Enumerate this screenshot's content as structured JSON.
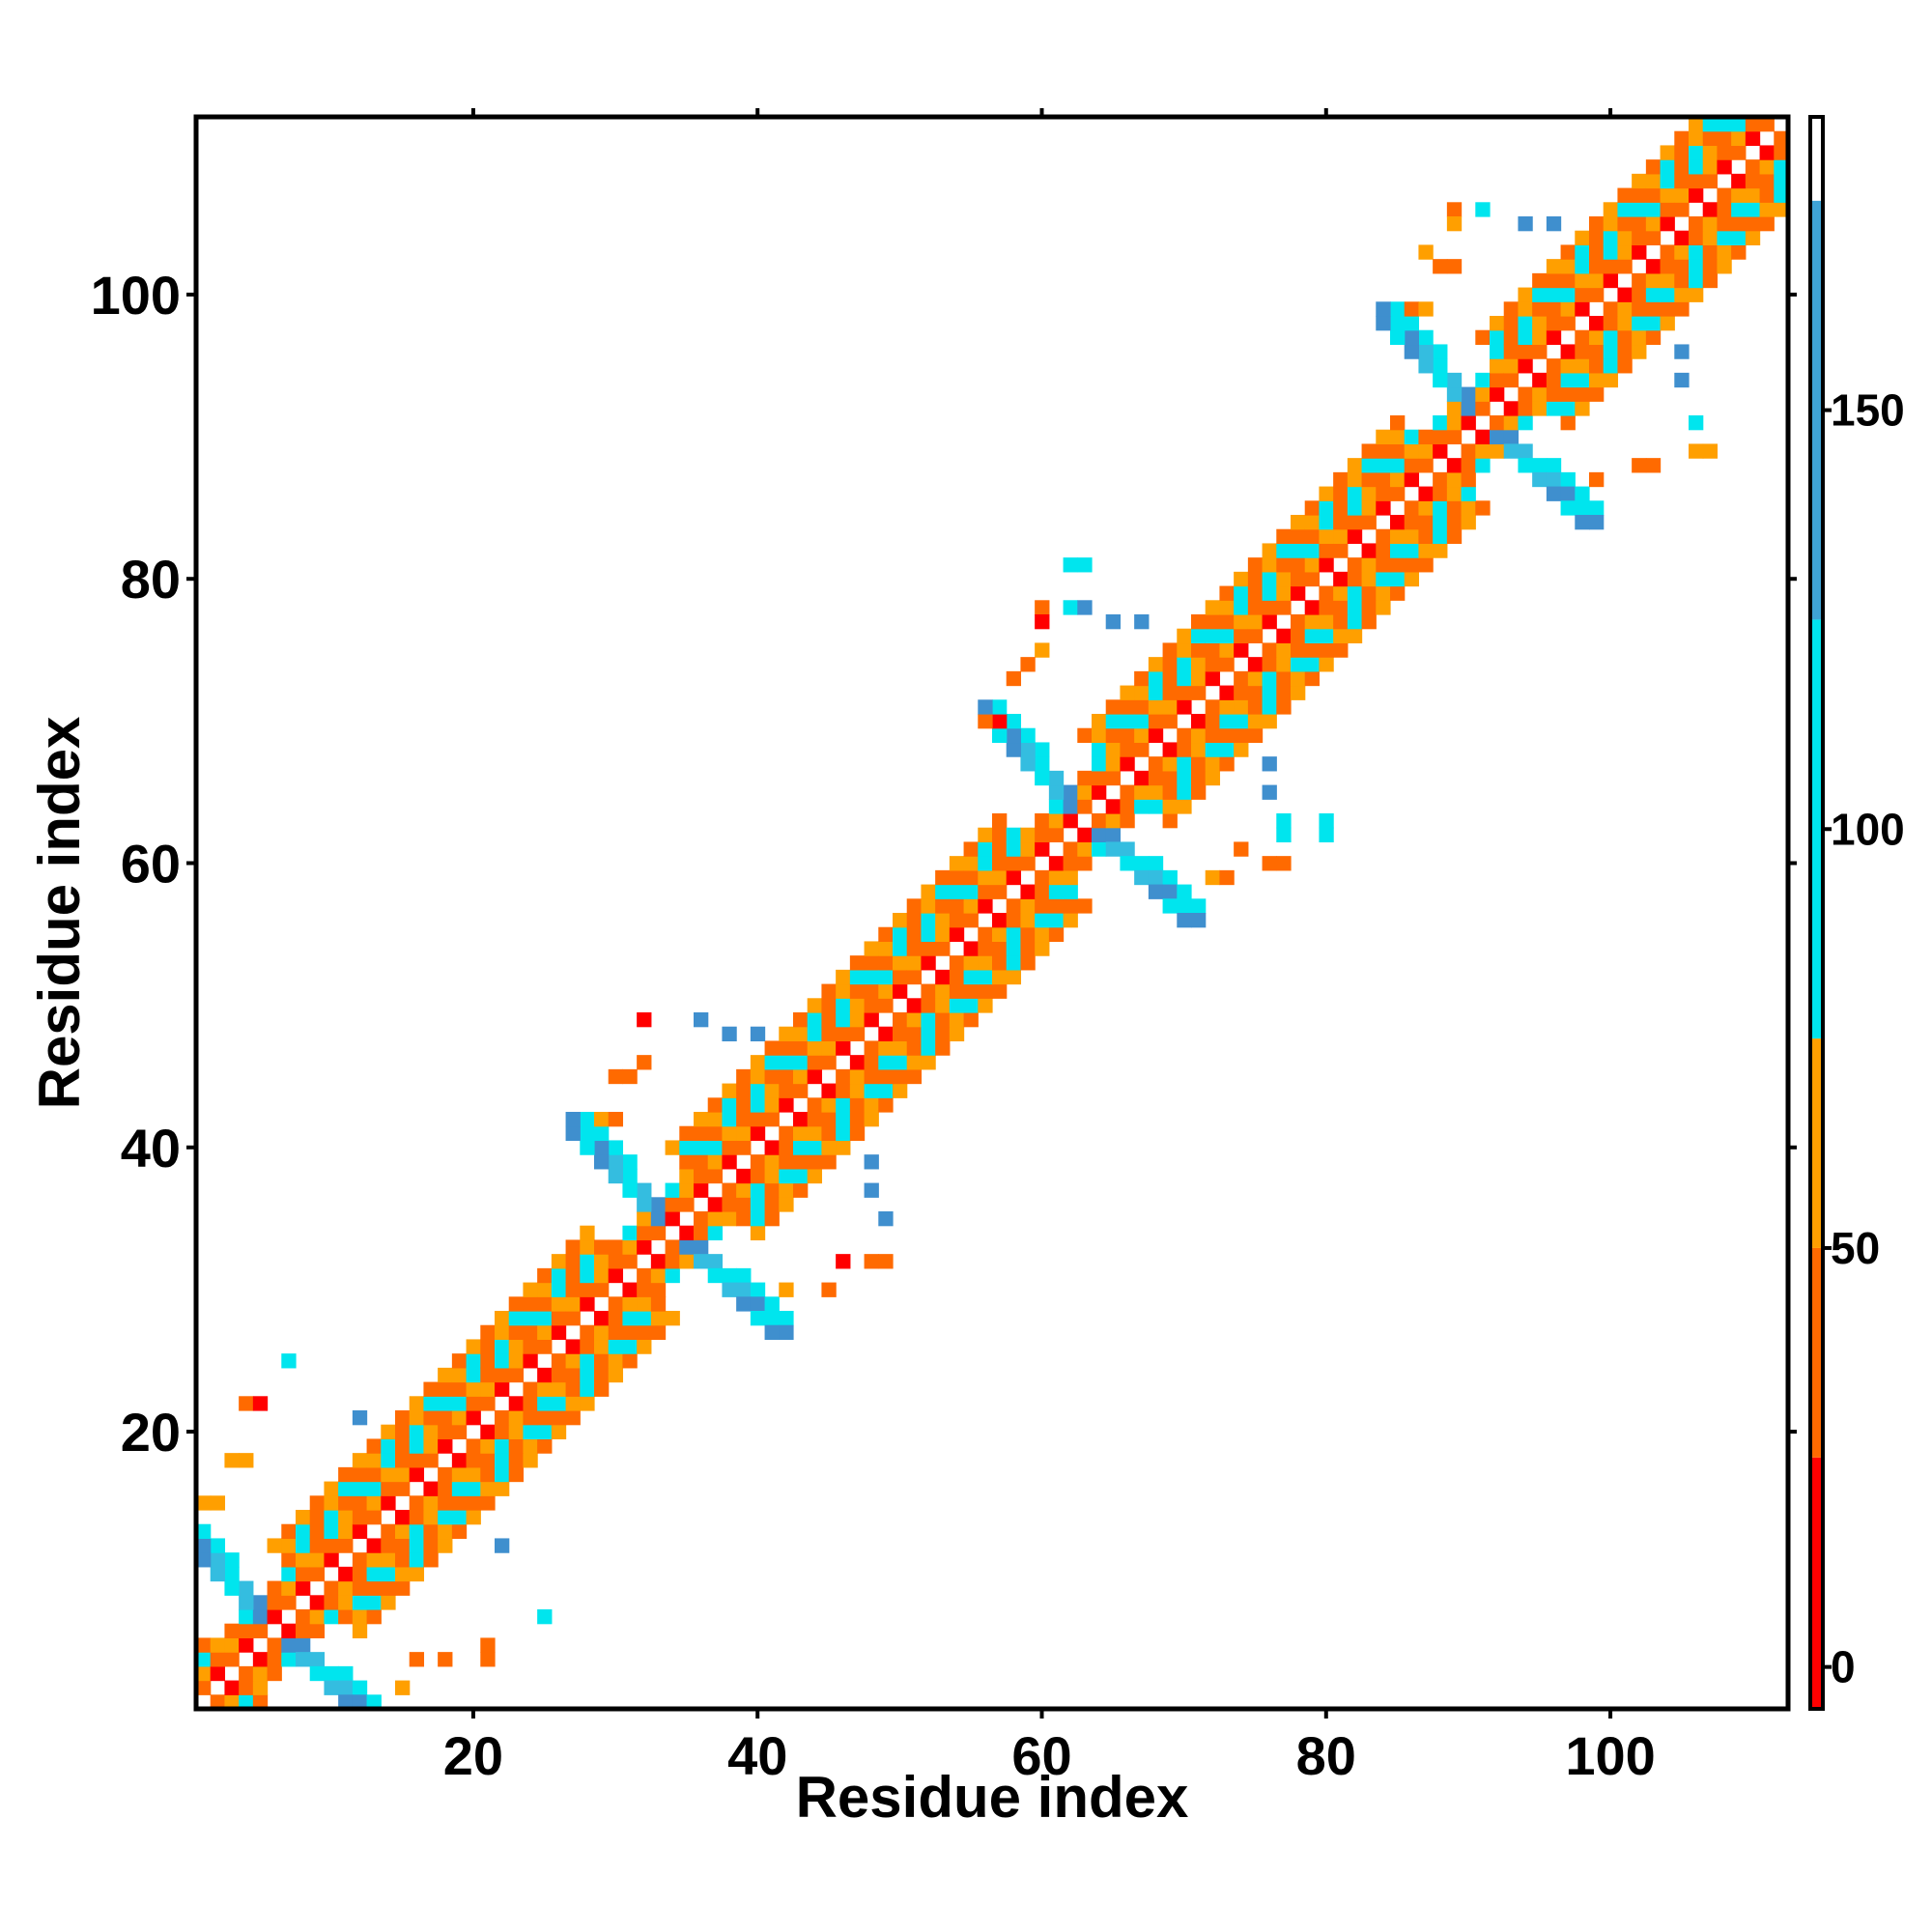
{
  "chart_data": {
    "type": "heatmap",
    "title": "",
    "xlabel": "Residue index",
    "ylabel": "Residue index",
    "xlim": [
      0.5,
      112.5
    ],
    "ylim": [
      0.5,
      112.5
    ],
    "x_ticks": [
      20,
      40,
      60,
      80,
      100
    ],
    "y_ticks": [
      20,
      40,
      60,
      80,
      100
    ],
    "grid": false,
    "legend": "colorbar right",
    "colorbar": {
      "range": [
        -5,
        185
      ],
      "ticks": [
        0,
        50,
        100,
        150
      ],
      "bands": [
        {
          "from": -5,
          "to": 25,
          "color": "#ff0000"
        },
        {
          "from": 25,
          "to": 50,
          "color": "#ff6a00"
        },
        {
          "from": 50,
          "to": 75,
          "color": "#ff9f00"
        },
        {
          "from": 75,
          "to": 125,
          "color": "#00e5ee"
        },
        {
          "from": 125,
          "to": 175,
          "color": "#3fa3d6"
        },
        {
          "from": 175,
          "to": 185,
          "color": "#ffffff"
        }
      ]
    },
    "cell_colors": {
      "A": "#ff0000",
      "B": "#ff6a00",
      "C": "#ff9f00",
      "D": "#00e5ee",
      "E": "#34bde0",
      "F": "#3f8fce"
    },
    "band_pattern": [
      {
        "offset": 1,
        "cycle": "AB"
      },
      {
        "offset": 2,
        "cycle": "BC"
      },
      {
        "offset": 3,
        "cycle": "BDC"
      },
      {
        "offset": 4,
        "cycle": "DB"
      },
      {
        "offset": 5,
        "cycle": "BCD"
      },
      {
        "offset": 6,
        "cycle": "CB"
      }
    ],
    "turns": [
      6,
      34,
      63,
      91
    ],
    "extra_cells": [
      {
        "x": 7,
        "y": 25,
        "v": "D"
      },
      {
        "x": 12,
        "y": 21,
        "v": "F"
      },
      {
        "x": 22,
        "y": 12,
        "v": "F"
      },
      {
        "x": 25,
        "y": 7,
        "v": "D"
      },
      {
        "x": 4,
        "y": 22,
        "v": "B"
      },
      {
        "x": 5,
        "y": 22,
        "v": "A"
      },
      {
        "x": 3,
        "y": 18,
        "v": "C"
      },
      {
        "x": 4,
        "y": 18,
        "v": "C"
      },
      {
        "x": 1,
        "y": 15,
        "v": "C"
      },
      {
        "x": 2,
        "y": 15,
        "v": "C"
      },
      {
        "x": 15,
        "y": 2,
        "v": "C"
      },
      {
        "x": 16,
        "y": 4,
        "v": "B"
      },
      {
        "x": 18,
        "y": 4,
        "v": "B"
      },
      {
        "x": 21,
        "y": 4,
        "v": "B"
      },
      {
        "x": 21,
        "y": 5,
        "v": "B"
      },
      {
        "x": 36,
        "y": 49,
        "v": "F"
      },
      {
        "x": 38,
        "y": 48,
        "v": "F"
      },
      {
        "x": 40,
        "y": 48,
        "v": "F"
      },
      {
        "x": 48,
        "y": 39,
        "v": "F"
      },
      {
        "x": 48,
        "y": 37,
        "v": "F"
      },
      {
        "x": 49,
        "y": 35,
        "v": "F"
      },
      {
        "x": 32,
        "y": 49,
        "v": "A"
      },
      {
        "x": 32,
        "y": 46,
        "v": "B"
      },
      {
        "x": 30,
        "y": 45,
        "v": "B"
      },
      {
        "x": 31,
        "y": 45,
        "v": "B"
      },
      {
        "x": 29,
        "y": 42,
        "v": "C"
      },
      {
        "x": 30,
        "y": 42,
        "v": "B"
      },
      {
        "x": 46,
        "y": 32,
        "v": "A"
      },
      {
        "x": 48,
        "y": 32,
        "v": "B"
      },
      {
        "x": 49,
        "y": 32,
        "v": "B"
      },
      {
        "x": 42,
        "y": 30,
        "v": "C"
      },
      {
        "x": 45,
        "y": 30,
        "v": "B"
      },
      {
        "x": 62,
        "y": 81,
        "v": "D"
      },
      {
        "x": 63,
        "y": 81,
        "v": "D"
      },
      {
        "x": 62,
        "y": 78,
        "v": "D"
      },
      {
        "x": 63,
        "y": 78,
        "v": "F"
      },
      {
        "x": 65,
        "y": 77,
        "v": "F"
      },
      {
        "x": 67,
        "y": 77,
        "v": "F"
      },
      {
        "x": 76,
        "y": 67,
        "v": "F"
      },
      {
        "x": 76,
        "y": 65,
        "v": "F"
      },
      {
        "x": 77,
        "y": 63,
        "v": "D"
      },
      {
        "x": 77,
        "y": 62,
        "v": "D"
      },
      {
        "x": 80,
        "y": 63,
        "v": "D"
      },
      {
        "x": 80,
        "y": 62,
        "v": "D"
      },
      {
        "x": 60,
        "y": 78,
        "v": "B"
      },
      {
        "x": 60,
        "y": 77,
        "v": "A"
      },
      {
        "x": 60,
        "y": 75,
        "v": "C"
      },
      {
        "x": 59,
        "y": 74,
        "v": "B"
      },
      {
        "x": 58,
        "y": 73,
        "v": "B"
      },
      {
        "x": 56,
        "y": 70,
        "v": "B"
      },
      {
        "x": 57,
        "y": 70,
        "v": "A"
      },
      {
        "x": 74,
        "y": 61,
        "v": "B"
      },
      {
        "x": 76,
        "y": 60,
        "v": "B"
      },
      {
        "x": 77,
        "y": 60,
        "v": "B"
      },
      {
        "x": 72,
        "y": 59,
        "v": "C"
      },
      {
        "x": 73,
        "y": 59,
        "v": "B"
      },
      {
        "x": 91,
        "y": 106,
        "v": "D"
      },
      {
        "x": 94,
        "y": 105,
        "v": "F"
      },
      {
        "x": 96,
        "y": 105,
        "v": "F"
      },
      {
        "x": 105,
        "y": 96,
        "v": "F"
      },
      {
        "x": 105,
        "y": 94,
        "v": "F"
      },
      {
        "x": 106,
        "y": 91,
        "v": "D"
      },
      {
        "x": 89,
        "y": 106,
        "v": "B"
      },
      {
        "x": 89,
        "y": 105,
        "v": "C"
      },
      {
        "x": 87,
        "y": 103,
        "v": "C"
      },
      {
        "x": 88,
        "y": 102,
        "v": "B"
      },
      {
        "x": 89,
        "y": 102,
        "v": "B"
      },
      {
        "x": 86,
        "y": 99,
        "v": "B"
      },
      {
        "x": 87,
        "y": 99,
        "v": "C"
      },
      {
        "x": 99,
        "y": 87,
        "v": "B"
      },
      {
        "x": 102,
        "y": 88,
        "v": "B"
      },
      {
        "x": 103,
        "y": 88,
        "v": "B"
      },
      {
        "x": 106,
        "y": 89,
        "v": "C"
      },
      {
        "x": 107,
        "y": 89,
        "v": "C"
      }
    ]
  }
}
